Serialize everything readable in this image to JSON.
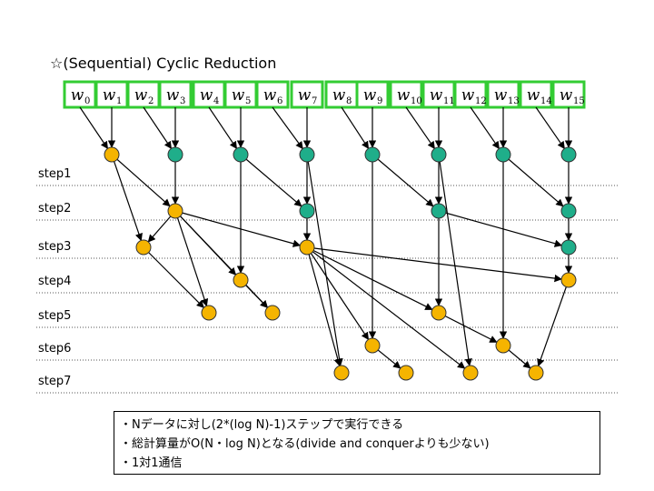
{
  "title": "☆(Sequential) Cyclic Reduction",
  "equations": [
    {
      "letter": "w",
      "sub": "0"
    },
    {
      "letter": "w",
      "sub": "1"
    },
    {
      "letter": "w",
      "sub": "2"
    },
    {
      "letter": "w",
      "sub": "3"
    },
    {
      "letter": "w",
      "sub": "4"
    },
    {
      "letter": "w",
      "sub": "5"
    },
    {
      "letter": "w",
      "sub": "6"
    },
    {
      "letter": "w",
      "sub": "7"
    },
    {
      "letter": "w",
      "sub": "8"
    },
    {
      "letter": "w",
      "sub": "9"
    },
    {
      "letter": "w",
      "sub": "10"
    },
    {
      "letter": "w",
      "sub": "11"
    },
    {
      "letter": "w",
      "sub": "12"
    },
    {
      "letter": "w",
      "sub": "13"
    },
    {
      "letter": "w",
      "sub": "14"
    },
    {
      "letter": "w",
      "sub": "15"
    }
  ],
  "steps": [
    "step1",
    "step2",
    "step3",
    "step4",
    "step5",
    "step6",
    "step7"
  ],
  "notes": [
    "・Nデータに対し(2*(log N)-1)ステップで実行できる",
    "・総計算量がO(N・log N)となる(divide and conquerよりも少ない)",
    "・1対1通信"
  ],
  "colors": {
    "box_border": "#33cc33",
    "node_orange": "#f5b400",
    "node_teal": "#1fae8a",
    "line": "#000000",
    "dotted": "#555555"
  }
}
